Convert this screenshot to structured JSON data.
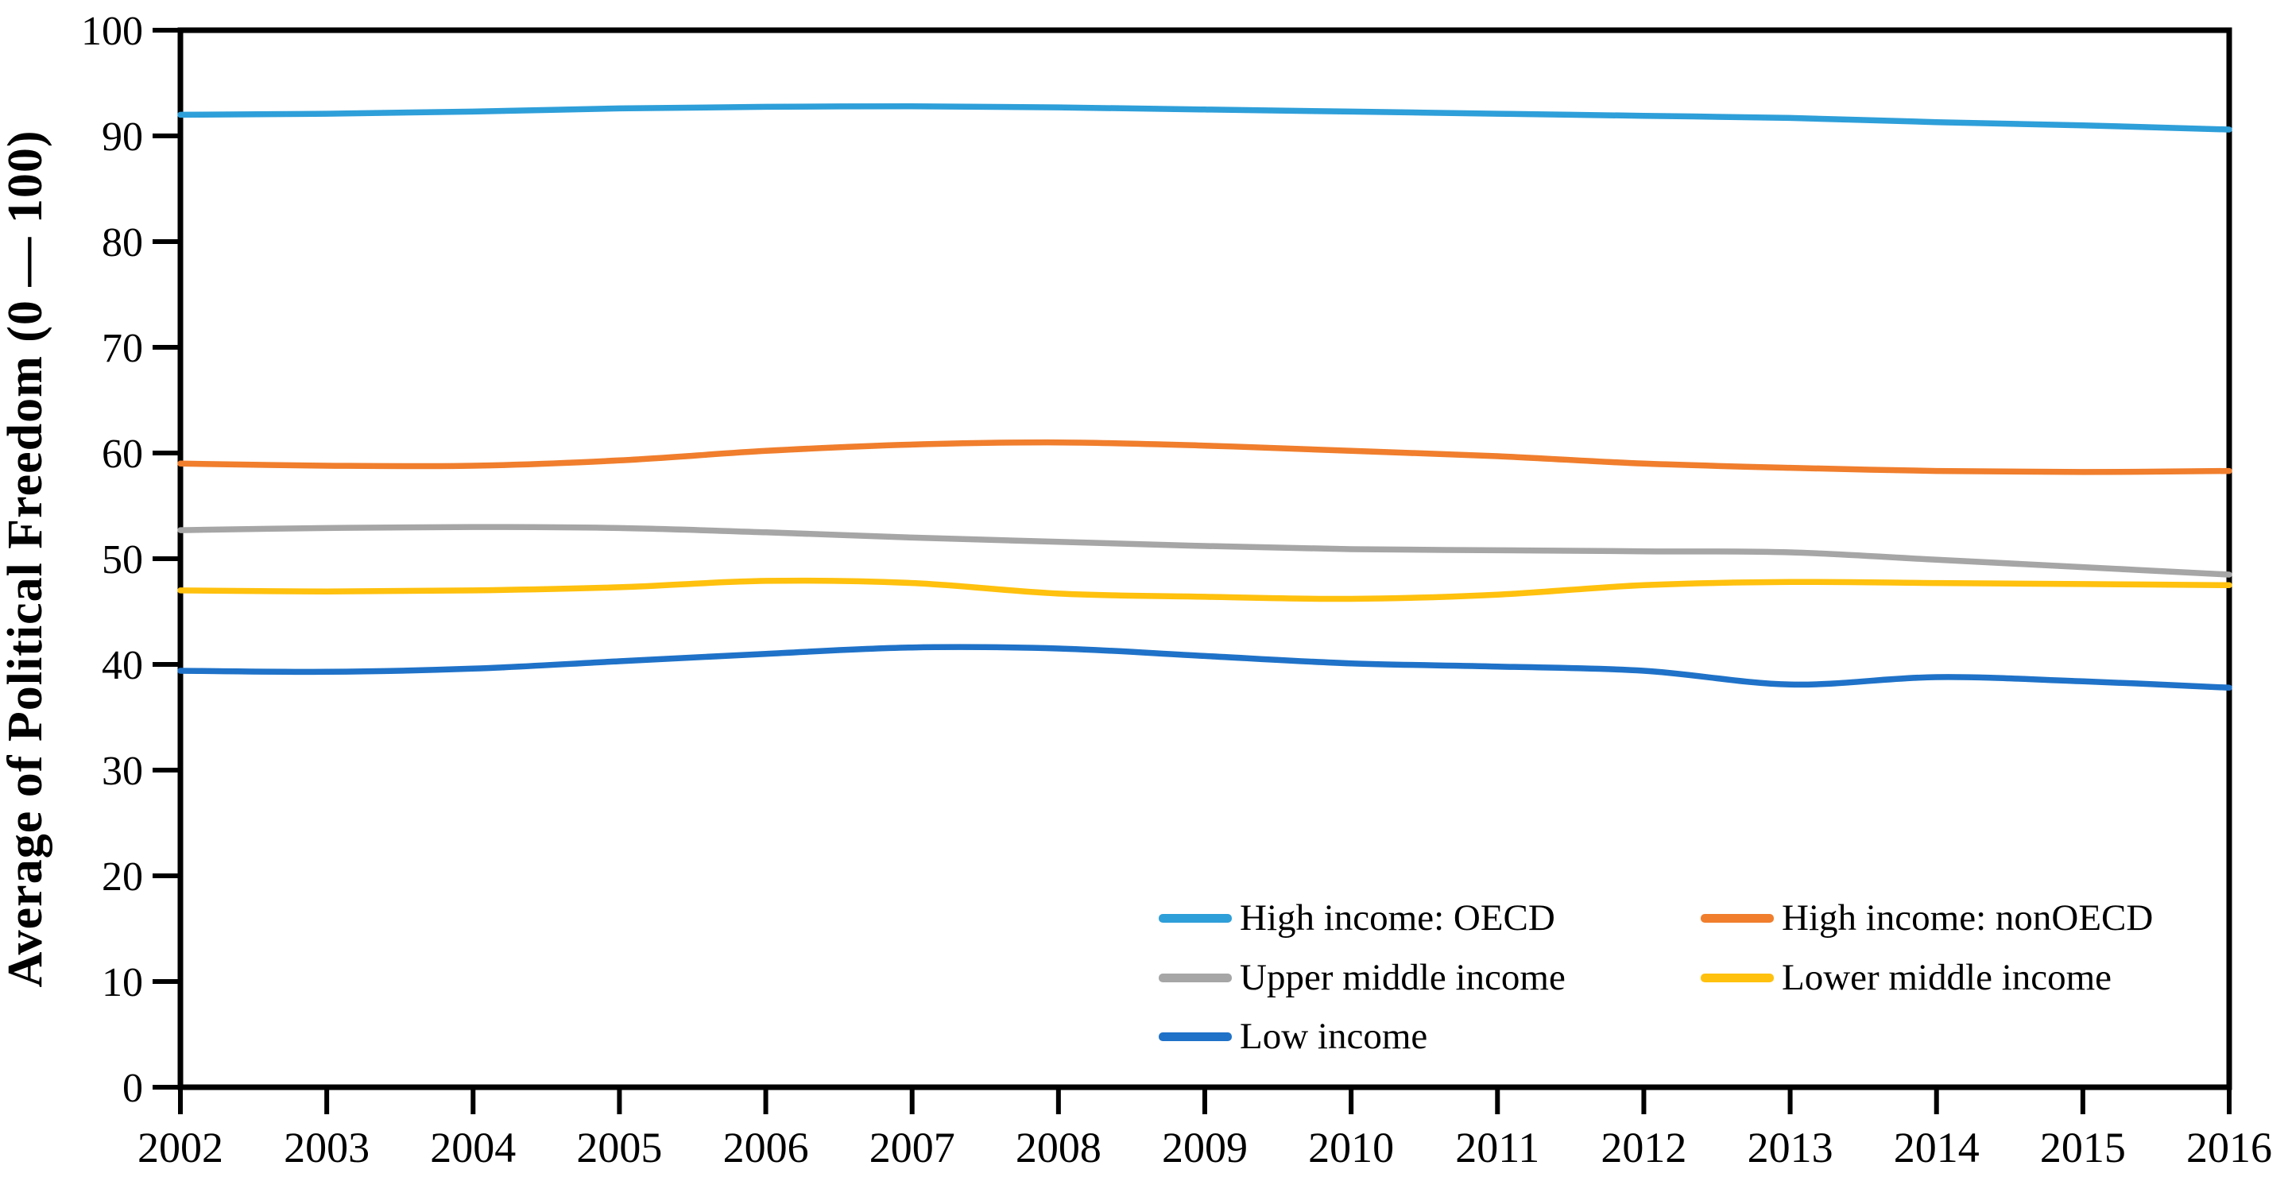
{
  "chart_data": {
    "type": "line",
    "title": "",
    "xlabel": "",
    "ylabel": "Average of Political Freedom (0 — 100)",
    "ylim": [
      0,
      100
    ],
    "ytick_step": 10,
    "yticks": [
      0,
      10,
      20,
      30,
      40,
      50,
      60,
      70,
      80,
      90,
      100
    ],
    "grid": false,
    "smooth": true,
    "legend_position": "inside-bottom-right",
    "axis_color": "#000000",
    "x": [
      2002,
      2003,
      2004,
      2005,
      2006,
      2007,
      2008,
      2009,
      2010,
      2011,
      2012,
      2013,
      2014,
      2015,
      2016
    ],
    "series": [
      {
        "name": "High income: OECD",
        "color": "#2E9FD9",
        "values": [
          92.0,
          92.1,
          92.3,
          92.6,
          92.75,
          92.8,
          92.7,
          92.5,
          92.3,
          92.1,
          91.9,
          91.7,
          91.3,
          91.0,
          90.6
        ]
      },
      {
        "name": "High income: nonOECD",
        "color": "#F07E2D",
        "values": [
          59.0,
          58.8,
          58.8,
          59.3,
          60.2,
          60.8,
          61.0,
          60.7,
          60.2,
          59.7,
          59.0,
          58.6,
          58.3,
          58.2,
          58.3
        ]
      },
      {
        "name": "Upper middle income",
        "color": "#A6A6A6",
        "values": [
          52.7,
          52.9,
          53.0,
          52.9,
          52.5,
          52.0,
          51.6,
          51.2,
          50.9,
          50.8,
          50.7,
          50.6,
          49.9,
          49.2,
          48.5
        ]
      },
      {
        "name": "Lower middle income",
        "color": "#FFC10E",
        "values": [
          47.0,
          46.9,
          47.0,
          47.3,
          47.9,
          47.7,
          46.7,
          46.4,
          46.2,
          46.6,
          47.5,
          47.8,
          47.7,
          47.6,
          47.5
        ]
      },
      {
        "name": "Low income",
        "color": "#1F72C8",
        "values": [
          39.4,
          39.3,
          39.6,
          40.3,
          41.0,
          41.6,
          41.5,
          40.8,
          40.1,
          39.8,
          39.4,
          38.1,
          38.8,
          38.4,
          37.8
        ]
      }
    ]
  }
}
